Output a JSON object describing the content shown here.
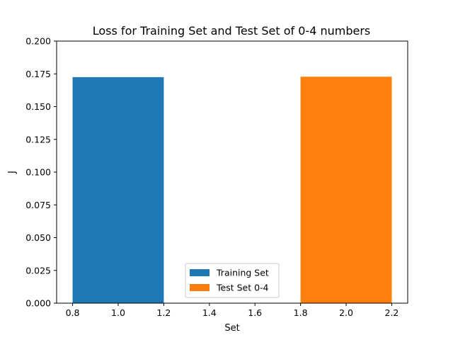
{
  "chart_data": {
    "type": "bar",
    "title": "Loss for Training Set and Test Set of 0-4 numbers",
    "xlabel": "Set",
    "ylabel": "J",
    "xlim": [
      0.73,
      2.27
    ],
    "ylim": [
      0,
      0.2
    ],
    "xticks": [
      "0.8",
      "1.0",
      "1.2",
      "1.4",
      "1.6",
      "1.8",
      "2.0",
      "2.2"
    ],
    "yticks": [
      "0.000",
      "0.025",
      "0.050",
      "0.075",
      "0.100",
      "0.125",
      "0.150",
      "0.175",
      "0.200"
    ],
    "bar_width": 0.4,
    "grid": false,
    "legend_position": "lower center",
    "series": [
      {
        "name": "Training Set",
        "x": 1.0,
        "value": 0.1725,
        "color": "#1f77b4"
      },
      {
        "name": "Test Set 0-4",
        "x": 2.0,
        "value": 0.1728,
        "color": "#ff7f0e"
      }
    ]
  }
}
